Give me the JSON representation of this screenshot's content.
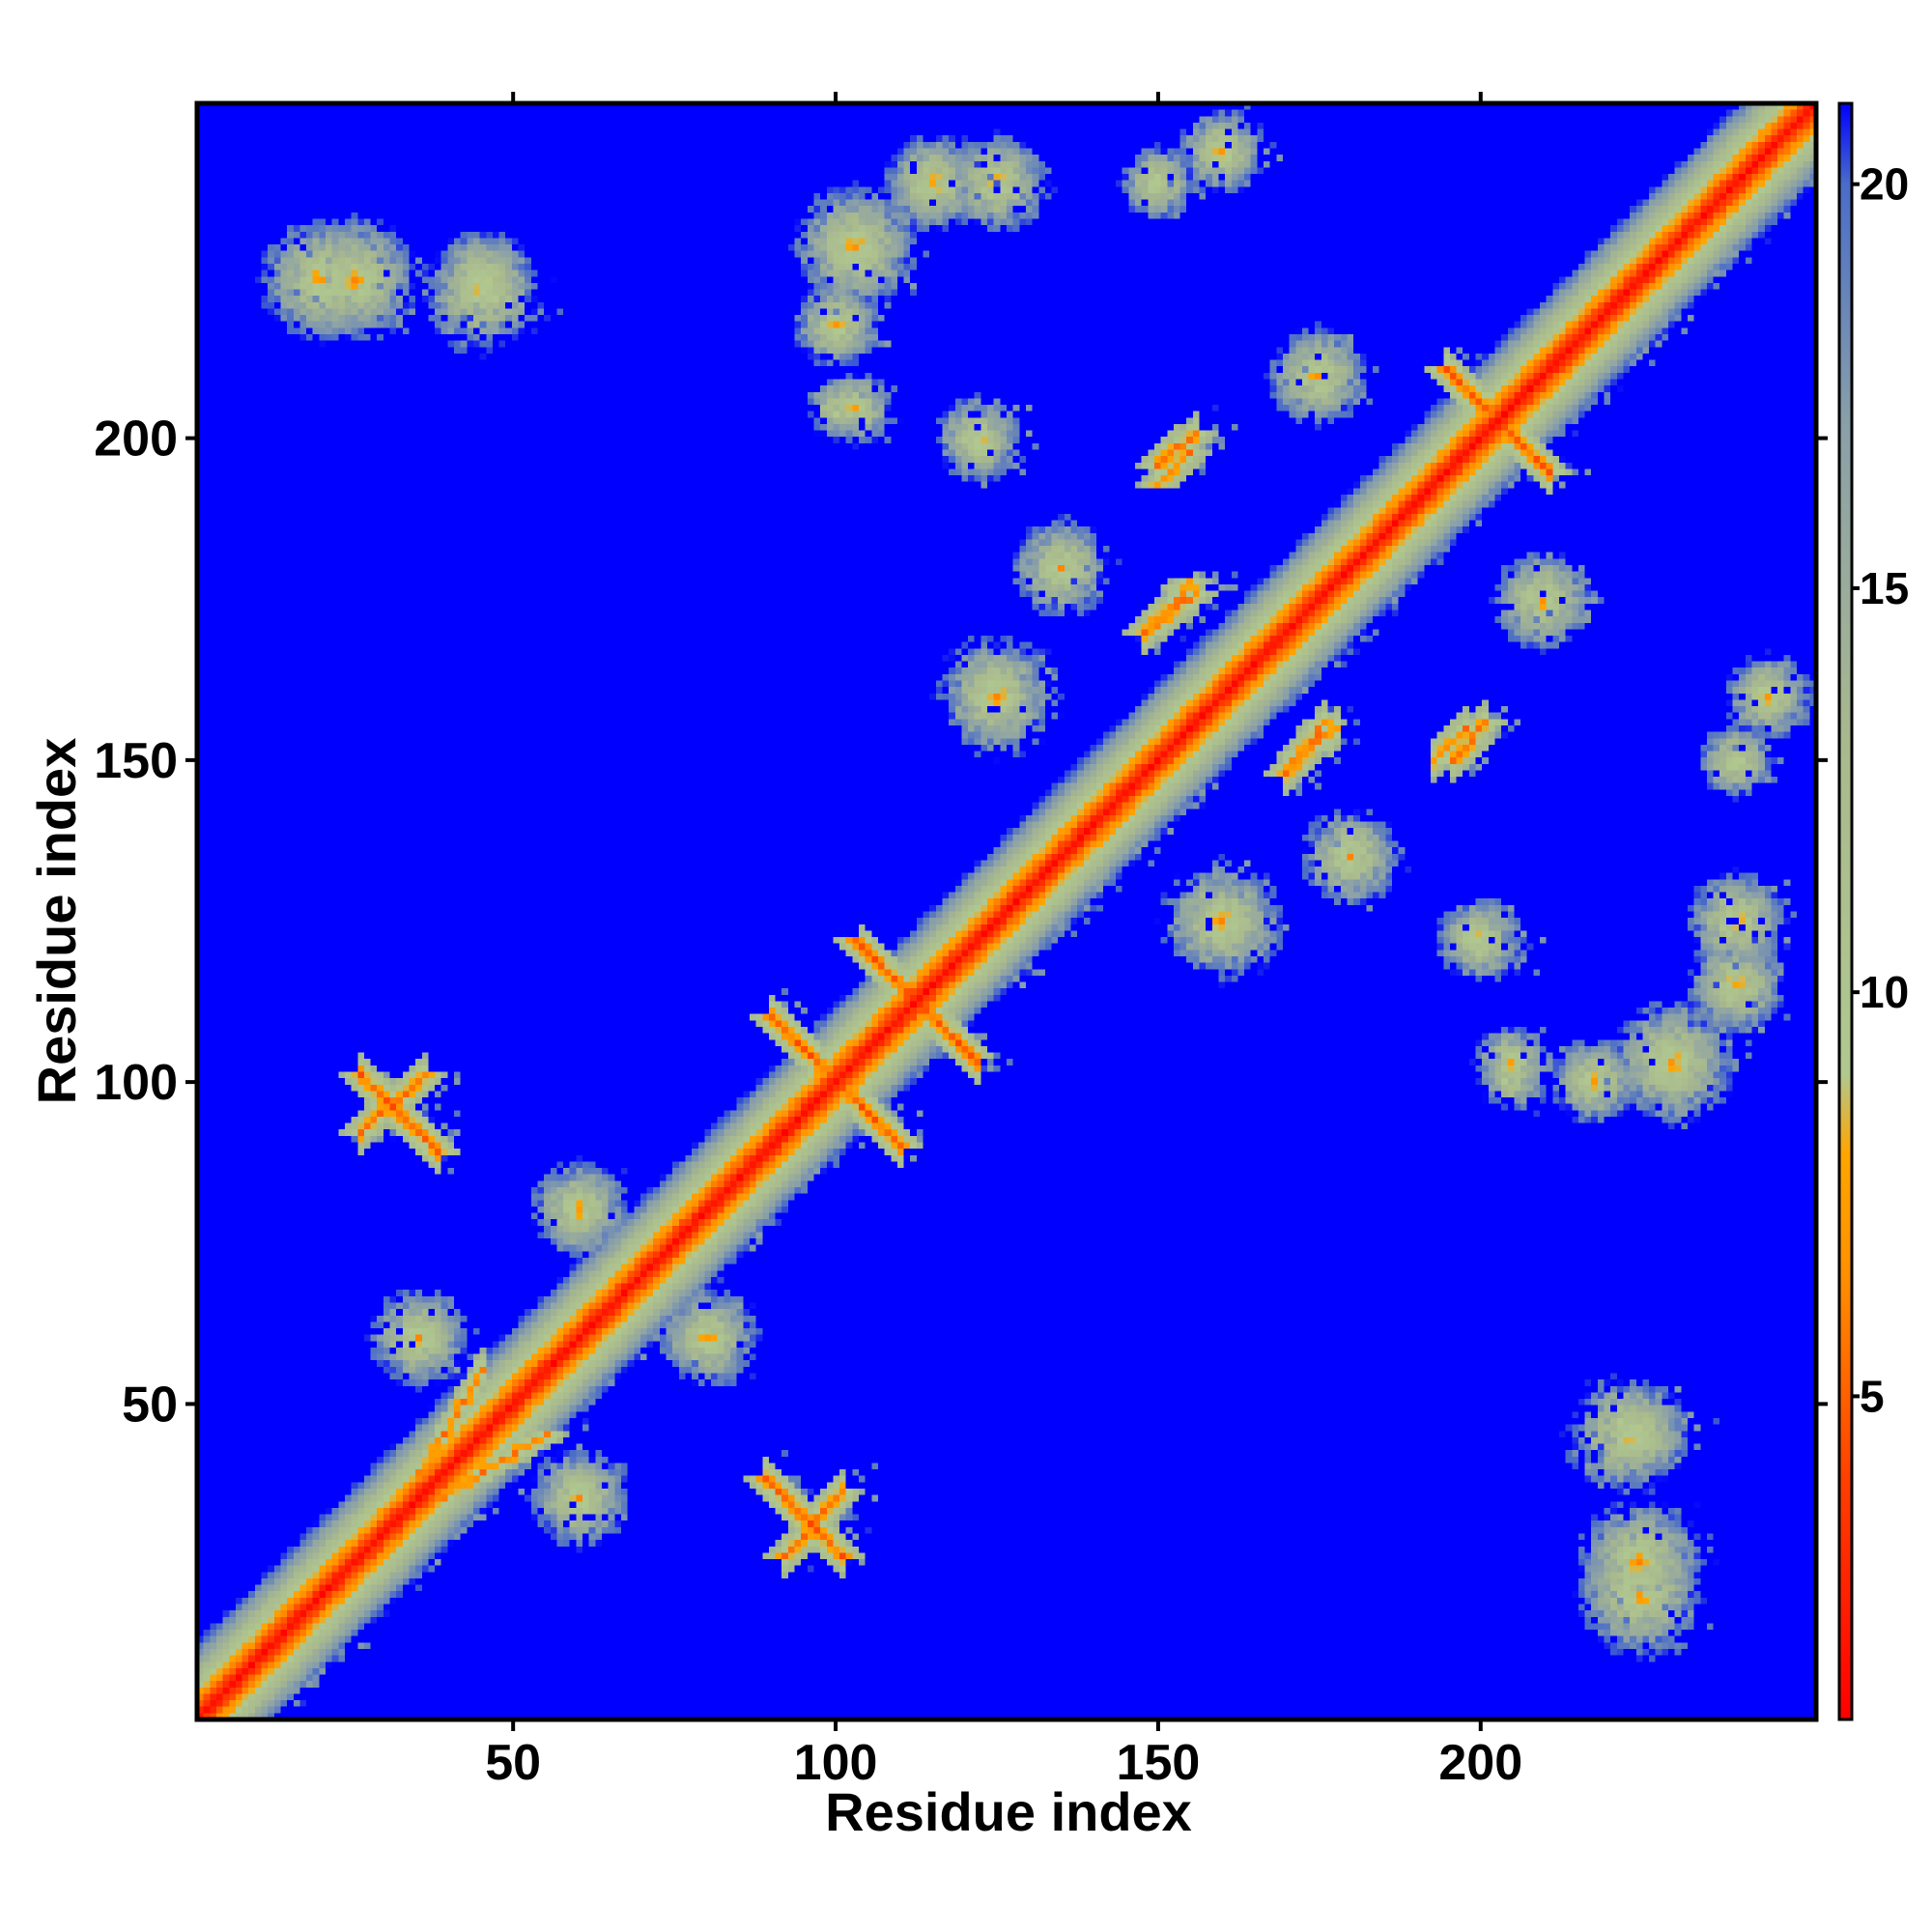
{
  "chart_data": {
    "type": "heatmap",
    "description": "Residue-residue distance map (contact map); diagonal is low distance, background saturates at the colorbar maximum.",
    "title": "",
    "xlabel": "Residue index",
    "ylabel": "Residue index",
    "n_residues": 252,
    "xlim": [
      1,
      252
    ],
    "ylim": [
      1,
      252
    ],
    "x_ticks": [
      50,
      100,
      150,
      200
    ],
    "y_ticks": [
      50,
      100,
      150,
      200
    ],
    "colorbar": {
      "range": [
        1,
        21
      ],
      "ticks": [
        5,
        10,
        15,
        20
      ],
      "stops": [
        {
          "value": 1,
          "color": "#ff0000"
        },
        {
          "value": 4,
          "color": "#ff4000"
        },
        {
          "value": 6.5,
          "color": "#ff9000"
        },
        {
          "value": 8,
          "color": "#ffa500"
        },
        {
          "value": 9,
          "color": "#b0c890"
        },
        {
          "value": 13,
          "color": "#a9b98e"
        },
        {
          "value": 17,
          "color": "#8aa0a8"
        },
        {
          "value": 20,
          "color": "#4a6cc8"
        },
        {
          "value": 21,
          "color": "#0000ff"
        }
      ]
    },
    "saturated_background": {
      "value": 21,
      "color": "#0000ff"
    },
    "contact_features": [
      {
        "kind": "diagonal",
        "residue_range": [
          1,
          252
        ],
        "core_distance": 3,
        "band_width": 4
      },
      {
        "kind": "antiparallel",
        "center": [
          100,
          100
        ],
        "span": 10
      },
      {
        "kind": "antiparallel",
        "center": [
          113,
          112
        ],
        "span": 9
      },
      {
        "kind": "antiparallel",
        "center": [
          203,
          203
        ],
        "span": 8
      },
      {
        "kind": "parallel",
        "from": [
          26,
          92
        ],
        "to": [
          36,
          101
        ]
      },
      {
        "kind": "parallel",
        "from": [
          92,
          26
        ],
        "to": [
          101,
          36
        ]
      },
      {
        "kind": "parallel",
        "from": [
          30,
          30
        ],
        "to": [
          45,
          55
        ]
      },
      {
        "kind": "parallel",
        "from": [
          150,
          196
        ],
        "to": [
          156,
          201
        ]
      },
      {
        "kind": "parallel",
        "from": [
          196,
          150
        ],
        "to": [
          201,
          156
        ]
      },
      {
        "kind": "parallel",
        "from": [
          148,
          170
        ],
        "to": [
          156,
          176
        ]
      },
      {
        "kind": "parallel",
        "from": [
          170,
          148
        ],
        "to": [
          176,
          156
        ]
      },
      {
        "kind": "parallel",
        "from": [
          171,
          150
        ],
        "to": [
          178,
          155
        ]
      },
      {
        "kind": "parallel",
        "from": [
          193,
          150
        ],
        "to": [
          198,
          155
        ]
      },
      {
        "kind": "antiparallel",
        "center": [
          95,
          32
        ],
        "span": 6
      },
      {
        "kind": "antiparallel",
        "center": [
          32,
          95
        ],
        "span": 6
      },
      {
        "kind": "cluster",
        "center": [
          103,
          205
        ],
        "radius": 6
      },
      {
        "kind": "cluster",
        "center": [
          205,
          103
        ],
        "radius": 6
      },
      {
        "kind": "cluster",
        "center": [
          122,
          200
        ],
        "radius": 7
      },
      {
        "kind": "cluster",
        "center": [
          200,
          122
        ],
        "radius": 7
      },
      {
        "kind": "cluster",
        "center": [
          20,
          225
        ],
        "radius": 10
      },
      {
        "kind": "cluster",
        "center": [
          225,
          20
        ],
        "radius": 10
      },
      {
        "kind": "cluster",
        "center": [
          45,
          225
        ],
        "radius": 8
      },
      {
        "kind": "cluster",
        "center": [
          225,
          45
        ],
        "radius": 8
      },
      {
        "kind": "cluster",
        "center": [
          103,
          230
        ],
        "radius": 10
      },
      {
        "kind": "cluster",
        "center": [
          230,
          103
        ],
        "radius": 10
      },
      {
        "kind": "cluster",
        "center": [
          115,
          240
        ],
        "radius": 8
      },
      {
        "kind": "cluster",
        "center": [
          240,
          115
        ],
        "radius": 8
      },
      {
        "kind": "cluster",
        "center": [
          160,
          245
        ],
        "radius": 7
      },
      {
        "kind": "cluster",
        "center": [
          245,
          160
        ],
        "radius": 7
      },
      {
        "kind": "cluster",
        "center": [
          125,
          160
        ],
        "radius": 8
      },
      {
        "kind": "cluster",
        "center": [
          160,
          125
        ],
        "radius": 8
      },
      {
        "kind": "cluster",
        "center": [
          205,
          100
        ],
        "radius": 5
      },
      {
        "kind": "cluster",
        "center": [
          218,
          100
        ],
        "radius": 7
      },
      {
        "kind": "cluster",
        "center": [
          100,
          218
        ],
        "radius": 7
      },
      {
        "kind": "cluster",
        "center": [
          225,
          25
        ],
        "radius": 10
      },
      {
        "kind": "cluster",
        "center": [
          25,
          225
        ],
        "radius": 10
      },
      {
        "kind": "cluster",
        "center": [
          223,
          45
        ],
        "radius": 10
      },
      {
        "kind": "cluster",
        "center": [
          240,
          125
        ],
        "radius": 8
      },
      {
        "kind": "cluster",
        "center": [
          125,
          240
        ],
        "radius": 8
      },
      {
        "kind": "cluster",
        "center": [
          160,
          125
        ],
        "radius": 10
      },
      {
        "kind": "cluster",
        "center": [
          60,
          35
        ],
        "radius": 8
      },
      {
        "kind": "cluster",
        "center": [
          35,
          60
        ],
        "radius": 8
      },
      {
        "kind": "cluster",
        "center": [
          60,
          80
        ],
        "radius": 8
      },
      {
        "kind": "cluster",
        "center": [
          80,
          60
        ],
        "radius": 8
      },
      {
        "kind": "cluster",
        "center": [
          180,
          135
        ],
        "radius": 8
      },
      {
        "kind": "cluster",
        "center": [
          135,
          180
        ],
        "radius": 8
      },
      {
        "kind": "cluster",
        "center": [
          210,
          175
        ],
        "radius": 8
      },
      {
        "kind": "cluster",
        "center": [
          175,
          210
        ],
        "radius": 8
      },
      {
        "kind": "cluster",
        "center": [
          240,
          150
        ],
        "radius": 6
      },
      {
        "kind": "cluster",
        "center": [
          150,
          240
        ],
        "radius": 6
      }
    ]
  }
}
